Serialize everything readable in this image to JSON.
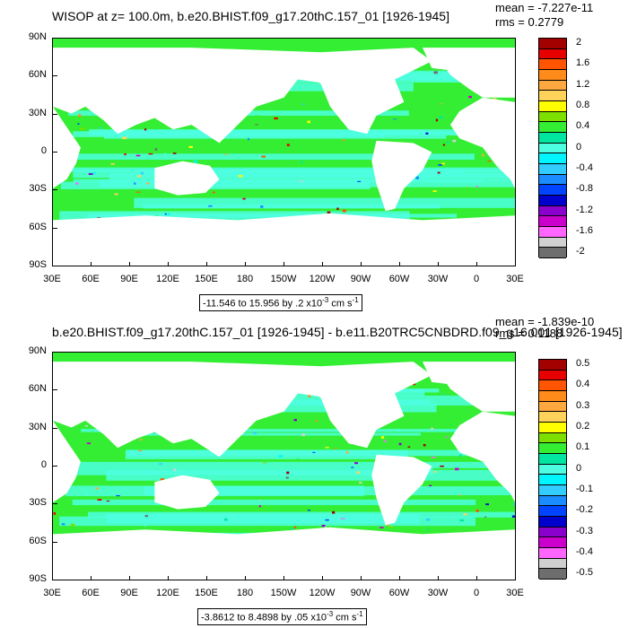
{
  "top": {
    "title": "WISOP at z= 100.0m, b.e20.BHIST.f09_g17.20thC.157_01 [1926-1945]",
    "mean": "mean = -7.227e-11",
    "rms": "rms = 0.2779",
    "range": "-11.546 to 15.956 by .2 x10",
    "range_exp": "-3",
    "range_units": "cm s",
    "range_units_exp": "-1",
    "colorbar_labels": [
      "2",
      "1.6",
      "1.2",
      "0.8",
      "0.4",
      "0",
      "-0.4",
      "-0.8",
      "-1.2",
      "-1.6",
      "-2"
    ]
  },
  "bottom": {
    "title": "b.e20.BHIST.f09_g17.20thC.157_01 [1926-1945] - b.e11.B20TRC5CNBDRD.f09_g16.001 [1926-1945]",
    "mean": "mean = -1.839e-10",
    "rms": "rms = 0.1188",
    "range": "-3.8612 to 8.4898 by .05 x10",
    "range_exp": "-3",
    "range_units": "cm s",
    "range_units_exp": "-1",
    "colorbar_labels": [
      "0.5",
      "0.4",
      "0.3",
      "0.2",
      "0.1",
      "0",
      "-0.1",
      "-0.2",
      "-0.3",
      "-0.4",
      "-0.5"
    ]
  },
  "lat_labels": [
    "90N",
    "60N",
    "30N",
    "0",
    "30S",
    "60S",
    "90S"
  ],
  "lon_labels": [
    "30E",
    "60E",
    "90E",
    "120E",
    "150E",
    "180",
    "150W",
    "120W",
    "90W",
    "60W",
    "30W",
    "0",
    "30E"
  ],
  "colors": {
    "palette": [
      "#a30000",
      "#e60000",
      "#ff5500",
      "#ff8c1a",
      "#ffa840",
      "#ffd35a",
      "#ffff00",
      "#7ee000",
      "#33ee33",
      "#00e6a0",
      "#4dffe0",
      "#00f5ff",
      "#33ccff",
      "#1a8cff",
      "#0044ff",
      "#0000cc",
      "#8a00cc",
      "#cc00cc",
      "#ff66ff",
      "#d0d0d0",
      "#6e6e6e"
    ],
    "land": "#ffffff",
    "ocean_main": "#33ee33",
    "ocean_alt": "#4dffe0"
  }
}
